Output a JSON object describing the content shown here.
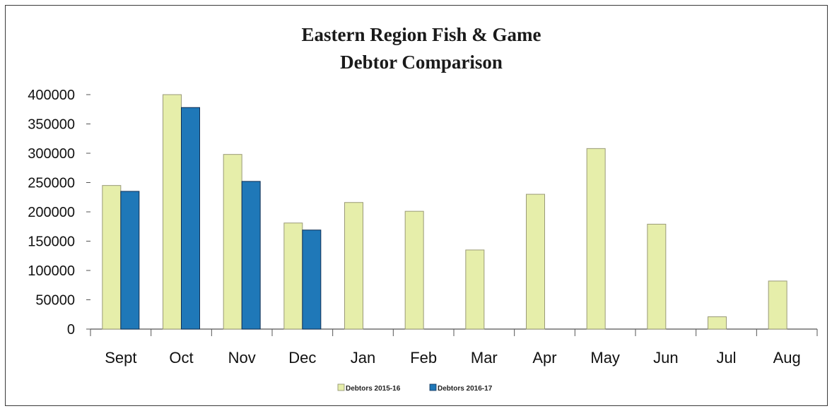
{
  "chart_data": {
    "type": "bar",
    "title": "Eastern Region Fish & Game",
    "subtitle": "Debtor Comparison",
    "xlabel": "",
    "ylabel": "",
    "categories": [
      "Sept",
      "Oct",
      "Nov",
      "Dec",
      "Jan",
      "Feb",
      "Mar",
      "Apr",
      "May",
      "Jun",
      "Jul",
      "Aug"
    ],
    "series": [
      {
        "name": "Debtors 2015-16",
        "color": "#e6eeaa",
        "values": [
          245000,
          400000,
          298000,
          181000,
          216000,
          201000,
          135000,
          230000,
          308000,
          179000,
          21000,
          82000
        ]
      },
      {
        "name": "Debtors 2016-17",
        "color": "#1f78b8",
        "values": [
          235000,
          378000,
          252000,
          169000,
          null,
          null,
          null,
          null,
          null,
          null,
          null,
          null
        ]
      }
    ],
    "ylim": [
      0,
      400000
    ],
    "yticks": [
      "0",
      "50000",
      "100000",
      "150000",
      "200000",
      "250000",
      "300000",
      "350000",
      "400000"
    ],
    "grid": false,
    "legend_position": "bottom"
  }
}
